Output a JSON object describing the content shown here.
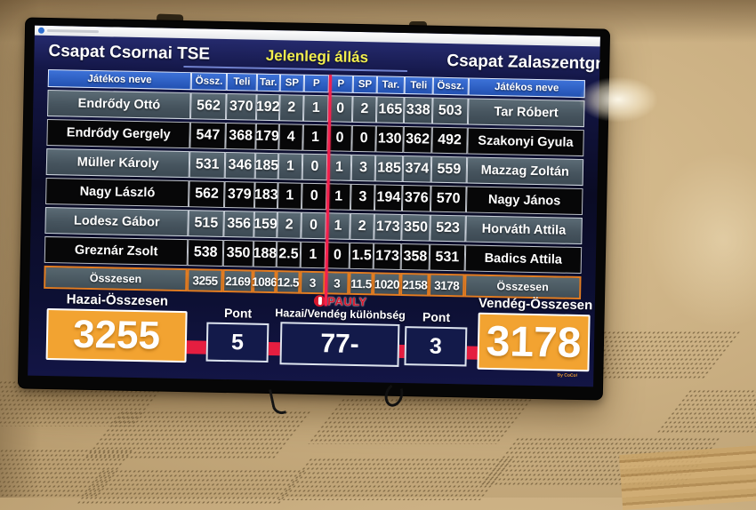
{
  "scoreboard": {
    "home_team": "Csapat Csornai TSE",
    "title": "Jelenlegi állás",
    "away_team": "Csapat Zalaszentgróti TK",
    "table": {
      "headers": [
        "Játékos neve",
        "Össz.",
        "Teli",
        "Tar.",
        "SP",
        "P",
        "P",
        "SP",
        "Tar.",
        "Teli",
        "Össz.",
        "Játékos neve"
      ],
      "rows": [
        [
          "Endrődy Ottó",
          "562",
          "370",
          "192",
          "2",
          "1",
          "0",
          "2",
          "165",
          "338",
          "503",
          "Tar Róbert"
        ],
        [
          "Endrődy Gergely",
          "547",
          "368",
          "179",
          "4",
          "1",
          "0",
          "0",
          "130",
          "362",
          "492",
          "Szakonyi Gyula"
        ],
        [
          "Müller Károly",
          "531",
          "346",
          "185",
          "1",
          "0",
          "1",
          "3",
          "185",
          "374",
          "559",
          "Mazzag Zoltán"
        ],
        [
          "Nagy László",
          "562",
          "379",
          "183",
          "1",
          "0",
          "1",
          "3",
          "194",
          "376",
          "570",
          "Nagy János"
        ],
        [
          "Lodesz Gábor",
          "515",
          "356",
          "159",
          "2",
          "0",
          "1",
          "2",
          "173",
          "350",
          "523",
          "Horváth Attila"
        ],
        [
          "Greznár Zsolt",
          "538",
          "350",
          "188",
          "2.5",
          "1",
          "0",
          "1.5",
          "173",
          "358",
          "531",
          "Badics Attila"
        ]
      ],
      "totals": [
        "Összesen",
        "3255",
        "2169",
        "1086",
        "12.5",
        "3",
        "3",
        "11.5",
        "1020",
        "2158",
        "3178",
        "Összesen"
      ]
    },
    "bottom": {
      "home_total_label": "Hazai-Összesen",
      "home_total": "3255",
      "home_points_label": "Pont",
      "home_points": "5",
      "diff_label": "Hazai/Vendég különbség",
      "diff_value": "77-",
      "away_points_label": "Pont",
      "away_points": "3",
      "away_total_label": "Vendég-Összesen",
      "away_total": "3178",
      "brand": "PAULY",
      "credit": "By CoCo!"
    },
    "colors": {
      "accent_orange": "#f2a331",
      "accent_red": "#e51e40",
      "header_blue": "#2e62cc",
      "title_yellow": "#f2ee4e",
      "row_slate": "#46545e",
      "row_dark": "#070708"
    }
  }
}
